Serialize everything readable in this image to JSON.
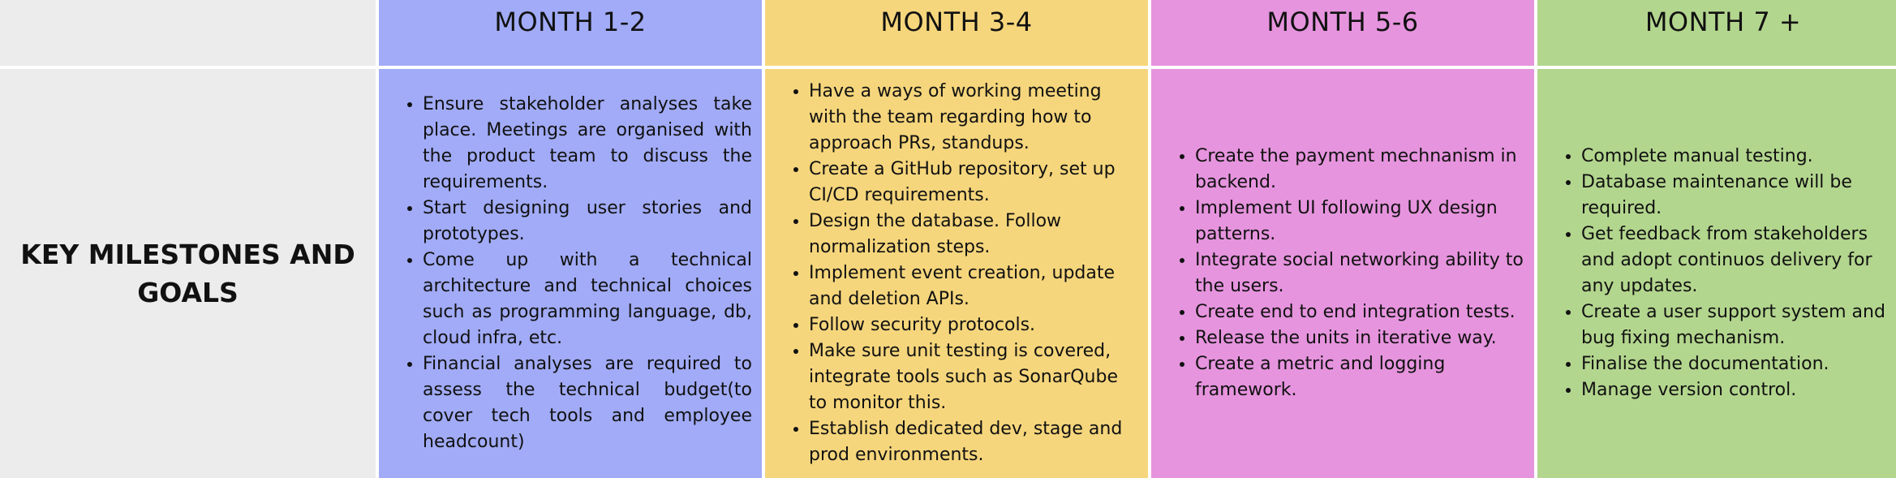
{
  "headers": [
    "MONTH 1-2",
    "MONTH 3-4",
    "MONTH 5-6",
    "MONTH 7 +"
  ],
  "row_label": "KEY MILESTONES AND GOALS",
  "colors": {
    "label_bg": "#ececec",
    "month_1_2": "#a1abf7",
    "month_3_4": "#f6d67c",
    "month_5_6": "#e694de",
    "month_7_plus": "#b3d68e"
  },
  "columns": [
    {
      "items": [
        "Ensure stakeholder analyses take place. Meetings are organised with the product team to discuss the requirements.",
        " Start designing user stories and prototypes.",
        "Come up with a technical architecture and technical choices such as programming language, db, cloud infra, etc.",
        "Financial analyses are required to assess the technical budget(to cover tech tools and employee headcount)"
      ]
    },
    {
      "items": [
        "Have a ways of working meeting with the team regarding how to approach PRs, standups.",
        "Create a GitHub repository, set up CI/CD requirements.",
        "Design the database. Follow normalization steps.",
        "Implement event creation, update and deletion APIs.",
        "Follow security protocols.",
        "Make sure unit testing is covered, integrate tools such as SonarQube to monitor this.",
        "Establish dedicated dev, stage and prod environments."
      ]
    },
    {
      "items": [
        "Create the payment mechnanism in backend.",
        "Implement UI following UX design patterns.",
        "Integrate social networking ability to the users.",
        "Create end to end integration tests.",
        "Release the units in iterative way.",
        "Create a metric and logging framework."
      ]
    },
    {
      "items": [
        "Complete manual testing.",
        "Database maintenance will be required.",
        "Get feedback from stakeholders and adopt continuos delivery for any updates.",
        "Create a user support system and bug fixing mechanism.",
        "Finalise the documentation.",
        "Manage version control."
      ]
    }
  ]
}
